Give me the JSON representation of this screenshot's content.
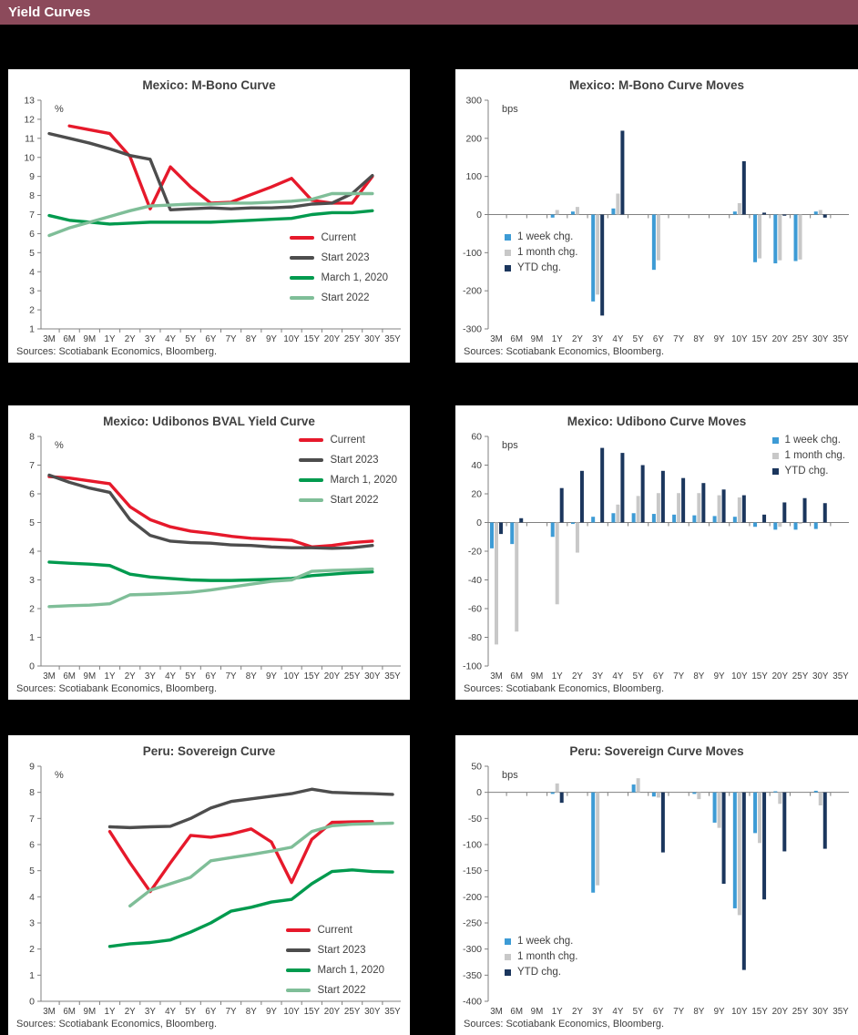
{
  "header": {
    "title": "Yield Curves"
  },
  "colors": {
    "header_bg": "#8C4A5B",
    "page_bg": "#000000",
    "panel_bg": "#FFFFFF",
    "text": "#404040",
    "axis": "#808080",
    "current_red": "#E6192B",
    "start_2023_gray": "#4D4D4D",
    "march_2020_green": "#009A4E",
    "start_2022_green": "#7FBE98",
    "week_blue": "#3D9BD5",
    "month_gray": "#C8C8C8",
    "ytd_navy": "#1B365D"
  },
  "chart_data": [
    {
      "type": "line",
      "title": "Mexico: M-Bono Curve",
      "unit_label": "%",
      "sources": "Sources: Scotiabank Economics, Bloomberg.",
      "categories": [
        "3M",
        "6M",
        "9M",
        "1Y",
        "2Y",
        "3Y",
        "4Y",
        "5Y",
        "6Y",
        "7Y",
        "8Y",
        "9Y",
        "10Y",
        "15Y",
        "20Y",
        "25Y",
        "30Y",
        "35Y"
      ],
      "ylim": [
        1,
        13
      ],
      "ystep": 1,
      "legend_position": "bottom-right",
      "series": [
        {
          "name": "Current",
          "color": "#E6192B",
          "values": [
            null,
            11.65,
            11.45,
            11.25,
            10.05,
            7.3,
            9.5,
            8.45,
            7.6,
            7.65,
            8.05,
            8.45,
            8.9,
            7.75,
            7.6,
            7.6,
            9.0,
            null
          ]
        },
        {
          "name": "Start 2023",
          "color": "#4D4D4D",
          "values": [
            11.25,
            11.0,
            10.75,
            10.45,
            10.1,
            9.9,
            7.25,
            7.3,
            7.35,
            7.3,
            7.35,
            7.35,
            7.4,
            7.55,
            7.6,
            8.1,
            9.05,
            null
          ]
        },
        {
          "name": "March 1, 2020",
          "color": "#009A4E",
          "values": [
            6.95,
            6.7,
            6.6,
            6.5,
            6.55,
            6.6,
            6.6,
            6.6,
            6.6,
            6.65,
            6.7,
            6.75,
            6.8,
            7.0,
            7.1,
            7.1,
            7.2,
            null
          ]
        },
        {
          "name": "Start 2022",
          "color": "#7FBE98",
          "values": [
            5.9,
            6.3,
            6.6,
            6.9,
            7.2,
            7.45,
            7.5,
            7.55,
            7.55,
            7.6,
            7.6,
            7.65,
            7.7,
            7.8,
            8.1,
            8.1,
            8.1,
            null
          ]
        }
      ]
    },
    {
      "type": "bar",
      "title": "Mexico: M-Bono Curve Moves",
      "unit_label": "bps",
      "sources": "Sources: Scotiabank Economics, Bloomberg.",
      "categories": [
        "3M",
        "6M",
        "9M",
        "1Y",
        "2Y",
        "3Y",
        "4Y",
        "5Y",
        "6Y",
        "7Y",
        "8Y",
        "9Y",
        "10Y",
        "15Y",
        "20Y",
        "25Y",
        "30Y",
        "35Y"
      ],
      "ylim": [
        -300,
        300
      ],
      "ystep": 100,
      "legend_position": "middle-left",
      "series": [
        {
          "name": "1 week chg.",
          "color": "#3D9BD5",
          "values": [
            0,
            0,
            0,
            -8,
            8,
            -228,
            16,
            0,
            -145,
            0,
            0,
            0,
            8,
            -125,
            -128,
            -122,
            8,
            0
          ]
        },
        {
          "name": "1 month chg.",
          "color": "#C8C8C8",
          "values": [
            0,
            0,
            0,
            12,
            20,
            -210,
            55,
            0,
            -120,
            0,
            0,
            0,
            30,
            -115,
            -120,
            -118,
            12,
            0
          ]
        },
        {
          "name": "YTD chg.",
          "color": "#1B365D",
          "values": [
            0,
            0,
            0,
            0,
            0,
            -265,
            220,
            0,
            0,
            0,
            0,
            0,
            140,
            5,
            -3,
            0,
            -8,
            0
          ]
        }
      ]
    },
    {
      "type": "line",
      "title": "Mexico: Udibonos BVAL Yield Curve",
      "unit_label": "%",
      "sources": "Sources: Scotiabank Economics, Bloomberg.",
      "categories": [
        "3M",
        "6M",
        "9M",
        "1Y",
        "2Y",
        "3Y",
        "4Y",
        "5Y",
        "6Y",
        "7Y",
        "8Y",
        "9Y",
        "10Y",
        "15Y",
        "20Y",
        "25Y",
        "30Y",
        "35Y"
      ],
      "ylim": [
        0,
        8
      ],
      "ystep": 1,
      "legend_position": "top-right",
      "series": [
        {
          "name": "Current",
          "color": "#E6192B",
          "values": [
            6.6,
            6.55,
            6.45,
            6.35,
            5.55,
            5.1,
            4.85,
            4.7,
            4.62,
            4.52,
            4.45,
            4.42,
            4.38,
            4.15,
            4.2,
            4.3,
            4.35,
            null
          ]
        },
        {
          "name": "Start 2023",
          "color": "#4D4D4D",
          "values": [
            6.65,
            6.4,
            6.2,
            6.05,
            5.1,
            4.55,
            4.35,
            4.3,
            4.28,
            4.22,
            4.2,
            4.15,
            4.12,
            4.12,
            4.1,
            4.12,
            4.2,
            null
          ]
        },
        {
          "name": "March 1, 2020",
          "color": "#009A4E",
          "values": [
            3.62,
            3.58,
            3.55,
            3.5,
            3.2,
            3.1,
            3.05,
            3.0,
            2.98,
            2.98,
            3.0,
            3.02,
            3.05,
            3.15,
            3.2,
            3.25,
            3.28,
            null
          ]
        },
        {
          "name": "Start 2022",
          "color": "#7FBE98",
          "values": [
            2.07,
            2.1,
            2.12,
            2.17,
            2.48,
            2.5,
            2.53,
            2.57,
            2.65,
            2.75,
            2.85,
            2.95,
            3.0,
            3.3,
            3.33,
            3.35,
            3.38,
            null
          ]
        }
      ]
    },
    {
      "type": "bar",
      "title": "Mexico: Udibono Curve Moves",
      "unit_label": "bps",
      "sources": "Sources: Scotiabank Economics, Bloomberg.",
      "categories": [
        "3M",
        "6M",
        "9M",
        "1Y",
        "2Y",
        "3Y",
        "4Y",
        "5Y",
        "6Y",
        "7Y",
        "8Y",
        "9Y",
        "10Y",
        "15Y",
        "20Y",
        "25Y",
        "30Y",
        "35Y"
      ],
      "ylim": [
        -100,
        60
      ],
      "ystep": 20,
      "legend_position": "top-right",
      "series": [
        {
          "name": "1 week chg.",
          "color": "#3D9BD5",
          "values": [
            -18,
            -15,
            0,
            -10,
            -1,
            4,
            6.5,
            6.5,
            6,
            5.5,
            5,
            4.5,
            4,
            -3,
            -5,
            -5,
            -4.5,
            0
          ]
        },
        {
          "name": "1 month chg.",
          "color": "#C8C8C8",
          "values": [
            -85,
            -76,
            0,
            -57,
            -21,
            0,
            12.5,
            18.5,
            20.5,
            20.5,
            20.5,
            19,
            17.5,
            0,
            -3,
            -1,
            0,
            0
          ]
        },
        {
          "name": "YTD chg.",
          "color": "#1B365D",
          "values": [
            -8,
            3,
            0,
            24,
            36,
            52,
            48.5,
            40,
            36,
            31,
            27.5,
            23,
            19,
            5.5,
            14,
            17,
            13.5,
            0
          ]
        }
      ]
    },
    {
      "type": "line",
      "title": "Peru: Sovereign Curve",
      "unit_label": "%",
      "sources": "Sources: Scotiabank Economics, Bloomberg.",
      "categories": [
        "3M",
        "6M",
        "9M",
        "1Y",
        "2Y",
        "3Y",
        "4Y",
        "5Y",
        "6Y",
        "7Y",
        "8Y",
        "9Y",
        "10Y",
        "15Y",
        "20Y",
        "25Y",
        "30Y",
        "35Y"
      ],
      "ylim": [
        0,
        9
      ],
      "ystep": 1,
      "legend_position": "bottom-right-low",
      "series": [
        {
          "name": "Current",
          "color": "#E6192B",
          "values": [
            null,
            null,
            null,
            6.5,
            5.3,
            4.2,
            5.3,
            6.35,
            6.28,
            6.4,
            6.6,
            6.1,
            4.55,
            6.2,
            6.85,
            6.87,
            6.88,
            null
          ]
        },
        {
          "name": "Start 2023",
          "color": "#4D4D4D",
          "values": [
            null,
            null,
            null,
            6.68,
            6.65,
            6.68,
            6.7,
            7.0,
            7.4,
            7.65,
            7.75,
            7.85,
            7.95,
            8.12,
            8.0,
            7.97,
            7.95,
            7.92
          ]
        },
        {
          "name": "March 1, 2020",
          "color": "#009A4E",
          "values": [
            null,
            null,
            null,
            2.1,
            2.2,
            2.25,
            2.35,
            2.65,
            3.0,
            3.45,
            3.6,
            3.8,
            3.9,
            4.5,
            4.97,
            5.03,
            4.97,
            4.95
          ]
        },
        {
          "name": "Start 2022",
          "color": "#7FBE98",
          "values": [
            null,
            null,
            null,
            null,
            3.65,
            4.25,
            4.5,
            4.75,
            5.38,
            5.5,
            5.62,
            5.75,
            5.9,
            6.5,
            6.72,
            6.78,
            6.8,
            6.82
          ]
        }
      ]
    },
    {
      "type": "bar",
      "title": "Peru: Sovereign Curve Moves",
      "unit_label": "bps",
      "sources": "Sources: Scotiabank Economics, Bloomberg.",
      "categories": [
        "3M",
        "6M",
        "9M",
        "1Y",
        "2Y",
        "3Y",
        "4Y",
        "5Y",
        "6Y",
        "7Y",
        "8Y",
        "9Y",
        "10Y",
        "15Y",
        "20Y",
        "25Y",
        "30Y",
        "35Y"
      ],
      "ylim": [
        -400,
        50
      ],
      "ystep": 50,
      "legend_position": "bottom-left",
      "series": [
        {
          "name": "1 week chg.",
          "color": "#3D9BD5",
          "values": [
            0,
            0,
            0,
            -3,
            0,
            -192,
            0,
            15,
            -8,
            0,
            -3,
            -58,
            -222,
            -78,
            2,
            0,
            3,
            0
          ]
        },
        {
          "name": "1 month chg.",
          "color": "#C8C8C8",
          "values": [
            0,
            0,
            0,
            17,
            0,
            -178,
            0,
            27,
            -10,
            0,
            -13,
            -68,
            -235,
            -97,
            -22,
            0,
            -25,
            0
          ]
        },
        {
          "name": "YTD chg.",
          "color": "#1B365D",
          "values": [
            0,
            0,
            0,
            -20,
            0,
            0,
            0,
            0,
            -115,
            0,
            0,
            -175,
            -340,
            -205,
            -113,
            0,
            -108,
            0
          ]
        }
      ]
    }
  ]
}
